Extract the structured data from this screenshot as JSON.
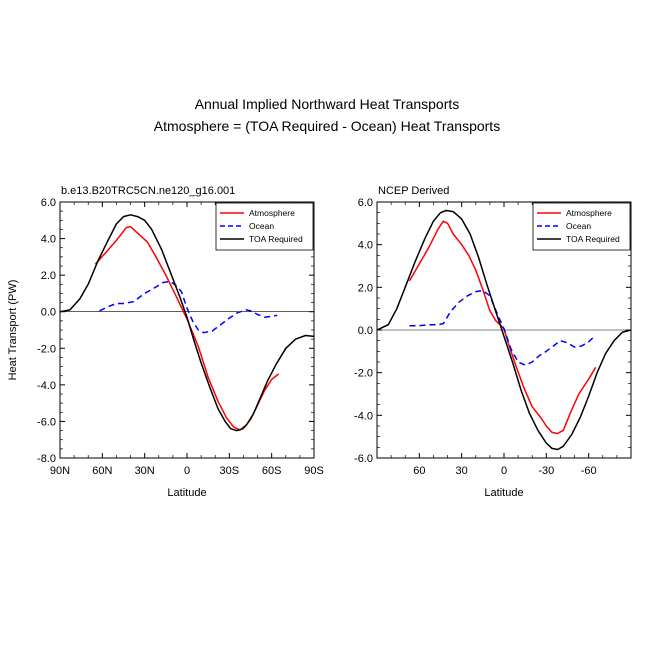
{
  "title": "Annual Implied Northward Heat Transports",
  "subtitle": "Atmosphere = (TOA Required - Ocean) Heat Transports",
  "colors": {
    "atmosphere": "#ff0000",
    "ocean": "#0000ff",
    "toa": "#000000"
  },
  "chart_data": [
    {
      "type": "line",
      "panel_title": "b.e13.B20TRC5CN.ne120_g16.001",
      "xlabel": "Latitude",
      "ylabel": "Heat Transport (PW)",
      "x_direction": "north-to-south",
      "xlim": [
        90,
        -90
      ],
      "ylim": [
        -8,
        6
      ],
      "x_ticks": [
        90,
        60,
        30,
        0,
        -30,
        -60,
        -90
      ],
      "x_tick_labels": [
        "90N",
        "60N",
        "30N",
        "0",
        "30S",
        "60S",
        "90S"
      ],
      "y_ticks": [
        -8,
        -6,
        -4,
        -2,
        0,
        2,
        4,
        6
      ],
      "y_tick_labels": [
        "-8.0",
        "-6.0",
        "-4.0",
        "-2.0",
        "0.0",
        "2.0",
        "4.0",
        "6.0"
      ],
      "zero_line": true,
      "legend": "top-right",
      "series": [
        {
          "name": "Atmosphere",
          "color": "#ff0000",
          "dash": "solid",
          "x": [
            65,
            58,
            50,
            43,
            40,
            35,
            28,
            22,
            15,
            8,
            0,
            -8,
            -15,
            -22,
            -28,
            -33,
            -37,
            -40,
            -45,
            -50,
            -55,
            -60,
            -65
          ],
          "y": [
            2.6,
            3.2,
            3.9,
            4.6,
            4.65,
            4.3,
            3.8,
            3.0,
            2.0,
            0.9,
            -0.4,
            -1.9,
            -3.6,
            -4.9,
            -5.8,
            -6.3,
            -6.45,
            -6.4,
            -5.9,
            -5.1,
            -4.3,
            -3.7,
            -3.4
          ]
        },
        {
          "name": "Ocean",
          "color": "#0000ff",
          "dash": "dashed",
          "x": [
            62,
            55,
            50,
            45,
            38,
            30,
            22,
            17,
            12,
            8,
            4,
            0,
            -4,
            -8,
            -12,
            -18,
            -24,
            -30,
            -36,
            -42,
            -45,
            -50,
            -55,
            -60,
            -64
          ],
          "y": [
            0.05,
            0.3,
            0.45,
            0.45,
            0.55,
            1.0,
            1.35,
            1.6,
            1.65,
            1.45,
            1.1,
            0.2,
            -0.5,
            -1.0,
            -1.15,
            -1.05,
            -0.7,
            -0.35,
            -0.05,
            0.1,
            0.05,
            -0.15,
            -0.3,
            -0.25,
            -0.2
          ]
        },
        {
          "name": "TOA Required",
          "color": "#000000",
          "dash": "solid",
          "x": [
            90,
            83,
            76,
            70,
            63,
            56,
            50,
            45,
            40,
            35,
            30,
            25,
            18,
            10,
            5,
            0,
            -5,
            -10,
            -16,
            -22,
            -27,
            -31,
            -35,
            -38,
            -42,
            -47,
            -52,
            -57,
            -63,
            -70,
            -77,
            -84,
            -90
          ],
          "y": [
            0.0,
            0.1,
            0.7,
            1.5,
            2.8,
            3.9,
            4.8,
            5.2,
            5.3,
            5.2,
            5.0,
            4.5,
            3.4,
            1.8,
            0.8,
            -0.3,
            -1.6,
            -2.8,
            -4.1,
            -5.3,
            -6.0,
            -6.4,
            -6.5,
            -6.45,
            -6.2,
            -5.6,
            -4.7,
            -3.8,
            -2.9,
            -2.0,
            -1.5,
            -1.3,
            -1.35
          ]
        }
      ]
    },
    {
      "type": "line",
      "panel_title": "NCEP Derived",
      "xlabel": "Latitude",
      "ylabel": "",
      "x_direction": "north-to-south",
      "xlim": [
        90,
        -90
      ],
      "ylim": [
        -6,
        6
      ],
      "x_ticks": [
        60,
        30,
        0,
        -30,
        -60
      ],
      "x_tick_labels": [
        "60",
        "30",
        "0",
        "-30",
        "-60"
      ],
      "y_ticks": [
        -6,
        -4,
        -2,
        0,
        2,
        4,
        6
      ],
      "y_tick_labels": [
        "-6.0",
        "-4.0",
        "-2.0",
        "0.0",
        "2.0",
        "4.0",
        "6.0"
      ],
      "zero_line": true,
      "legend": "top-right",
      "series": [
        {
          "name": "Atmosphere",
          "color": "#ff0000",
          "dash": "solid",
          "x": [
            67,
            60,
            53,
            47,
            43,
            40,
            36,
            30,
            25,
            20,
            15,
            10,
            6,
            2,
            0,
            -3,
            -8,
            -14,
            -20,
            -26,
            -30,
            -34,
            -38,
            -42,
            -47,
            -53,
            -60,
            -65
          ],
          "y": [
            2.3,
            3.1,
            3.9,
            4.7,
            5.1,
            5.0,
            4.5,
            4.0,
            3.5,
            2.8,
            1.9,
            0.9,
            0.45,
            0.2,
            0.05,
            -0.6,
            -1.6,
            -2.7,
            -3.6,
            -4.1,
            -4.5,
            -4.8,
            -4.85,
            -4.7,
            -3.9,
            -3.0,
            -2.3,
            -1.75
          ]
        },
        {
          "name": "Ocean",
          "color": "#0000ff",
          "dash": "dashed",
          "x": [
            67,
            60,
            53,
            47,
            43,
            38,
            32,
            26,
            20,
            15,
            10,
            5,
            0,
            -5,
            -10,
            -15,
            -20,
            -25,
            -30,
            -35,
            -40,
            -45,
            -50,
            -55,
            -60,
            -65
          ],
          "y": [
            0.2,
            0.2,
            0.25,
            0.25,
            0.3,
            0.85,
            1.3,
            1.6,
            1.8,
            1.85,
            1.6,
            0.8,
            0.05,
            -0.9,
            -1.5,
            -1.65,
            -1.5,
            -1.2,
            -1.0,
            -0.75,
            -0.5,
            -0.6,
            -0.8,
            -0.75,
            -0.55,
            -0.25
          ]
        },
        {
          "name": "TOA Required",
          "color": "#000000",
          "dash": "solid",
          "x": [
            90,
            82,
            76,
            70,
            63,
            56,
            50,
            45,
            41,
            36,
            30,
            24,
            18,
            12,
            6,
            0,
            -6,
            -12,
            -18,
            -24,
            -30,
            -34,
            -38,
            -42,
            -48,
            -54,
            -60,
            -66,
            -72,
            -78,
            -84,
            -90
          ],
          "y": [
            0.0,
            0.25,
            1.0,
            2.0,
            3.2,
            4.3,
            5.1,
            5.5,
            5.6,
            5.55,
            5.2,
            4.5,
            3.4,
            2.1,
            0.9,
            -0.3,
            -1.5,
            -2.8,
            -3.9,
            -4.7,
            -5.3,
            -5.55,
            -5.6,
            -5.45,
            -4.9,
            -4.1,
            -3.1,
            -2.0,
            -1.1,
            -0.5,
            -0.1,
            0.0
          ]
        }
      ]
    }
  ]
}
